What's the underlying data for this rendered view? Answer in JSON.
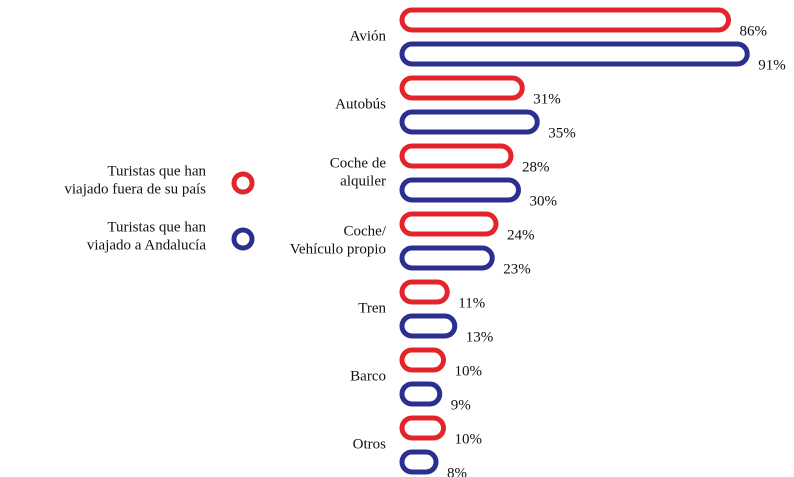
{
  "chart_data": {
    "type": "bar",
    "categories": [
      [
        "Avión"
      ],
      [
        "Autobús"
      ],
      [
        "Coche de",
        "alquiler"
      ],
      [
        "Coche/",
        "Vehículo propio"
      ],
      [
        "Tren"
      ],
      [
        "Barco"
      ],
      [
        "Otros"
      ]
    ],
    "series": [
      {
        "name": [
          "Turistas que han",
          "viajado fuera de su país"
        ],
        "color": "#e3242b",
        "values": [
          86,
          31,
          28,
          24,
          11,
          10,
          10
        ],
        "value_labels": [
          "86%",
          "31%",
          "28%",
          "24%",
          "11%",
          "10%",
          "10%"
        ]
      },
      {
        "name": [
          "Turistas que han",
          "viajado a Andalucía"
        ],
        "color": "#2b2f8f",
        "values": [
          91,
          35,
          30,
          23,
          13,
          9,
          8
        ],
        "value_labels": [
          "91%",
          "35%",
          "30%",
          "23%",
          "13%",
          "9%",
          "8%"
        ]
      }
    ]
  }
}
